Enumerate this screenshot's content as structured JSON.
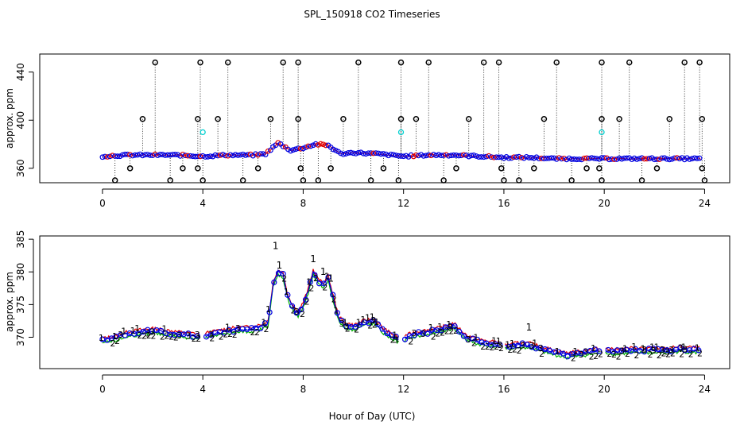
{
  "figure": {
    "title": "SPL_150918  CO2 Timeseries",
    "xlabel": "Hour of Day (UTC)"
  },
  "colors": {
    "outlier": "#000000",
    "series_1": "#e00000",
    "series_2": "#00b000",
    "series_3": "#0000e0",
    "flagged": "#00d0d0",
    "fit_line_red": "#e00000",
    "fit_line_blue": "#0000e0"
  },
  "chart_data": [
    {
      "type": "scatter",
      "panel": "top",
      "ylabel": "approx. ppm",
      "xlim": [
        -2.5,
        25
      ],
      "ylim": [
        348,
        455
      ],
      "xticks": [
        0,
        4,
        8,
        12,
        16,
        20,
        24
      ],
      "yticks": [
        360,
        400,
        440
      ],
      "base_curve": {
        "x": [
          0,
          1,
          2,
          3,
          4,
          5,
          6,
          6.5,
          7,
          7.5,
          8,
          8.5,
          9,
          9.5,
          10,
          11,
          12,
          13,
          14,
          15,
          16,
          17,
          18,
          19,
          20,
          21,
          22,
          23,
          23.8
        ],
        "y": [
          370,
          371,
          371,
          371,
          370,
          371,
          371,
          372,
          381,
          375,
          377,
          380,
          379,
          372,
          373,
          372,
          370,
          371,
          371,
          370,
          369,
          369,
          368,
          368,
          368,
          368,
          368,
          368,
          368
        ]
      },
      "outliers_high": {
        "x": [
          2.1,
          3.9,
          5.0,
          7.2,
          7.8,
          10.2,
          11.9,
          13.0,
          15.2,
          15.8,
          18.1,
          19.9,
          21.0,
          23.2,
          23.8
        ],
        "y": [
          448,
          448,
          448,
          448,
          448,
          448,
          448,
          448,
          448,
          448,
          448,
          448,
          448,
          448,
          448
        ]
      },
      "outliers_mid": {
        "x": [
          1.6,
          3.8,
          4.6,
          6.7,
          7.8,
          9.6,
          11.9,
          12.5,
          14.6,
          17.6,
          19.9,
          20.6,
          22.6,
          23.9
        ],
        "y": [
          401,
          401,
          401,
          401,
          401,
          401,
          401,
          401,
          401,
          401,
          401,
          401,
          401,
          401
        ]
      },
      "outliers_low": {
        "x": [
          0.5,
          1.1,
          2.7,
          3.2,
          3.8,
          4.0,
          5.6,
          6.2,
          7.9,
          8.0,
          8.6,
          9.1,
          10.7,
          11.2,
          11.8,
          13.6,
          14.1,
          15.9,
          16.0,
          16.6,
          17.2,
          18.7,
          19.3,
          19.8,
          19.9,
          21.5,
          22.1,
          23.9,
          24.0
        ],
        "y": [
          350,
          360,
          350,
          360,
          360,
          350,
          350,
          360,
          360,
          350,
          350,
          360,
          350,
          360,
          350,
          350,
          360,
          360,
          350,
          350,
          360,
          350,
          360,
          360,
          350,
          350,
          360,
          360,
          350
        ]
      },
      "flagged_points": {
        "x": [
          4.0,
          11.9,
          19.9
        ],
        "y": [
          390,
          390,
          390
        ]
      }
    },
    {
      "type": "scatter",
      "panel": "bottom",
      "ylabel": "approx. ppm",
      "xlim": [
        -2.5,
        25
      ],
      "ylim": [
        365.2,
        385.5
      ],
      "xticks": [
        0,
        4,
        8,
        12,
        16,
        20,
        24
      ],
      "yticks": [
        370,
        375,
        380,
        385
      ],
      "series": [
        {
          "name": "1",
          "marker": "1"
        },
        {
          "name": "2",
          "marker": "2"
        },
        {
          "name": "3",
          "marker": "3"
        }
      ],
      "base_curve": {
        "x": [
          0,
          0.5,
          1,
          1.5,
          2,
          2.5,
          3,
          3.5,
          3.9,
          4.1,
          4.5,
          5,
          5.5,
          6,
          6.4,
          6.6,
          6.8,
          7.0,
          7.2,
          7.4,
          7.6,
          7.8,
          8.0,
          8.2,
          8.4,
          8.6,
          8.8,
          9.0,
          9.2,
          9.4,
          9.6,
          10.0,
          10.4,
          10.8,
          11.2,
          11.6,
          11.9,
          12.1,
          12.5,
          13,
          13.5,
          14,
          14.5,
          15,
          15.5,
          15.9,
          16.1,
          16.5,
          17,
          17.5,
          18,
          18.5,
          19,
          19.5,
          19.9,
          20.1,
          20.5,
          21,
          21.5,
          22,
          22.5,
          23,
          23.5,
          23.8
        ],
        "y": [
          369.5,
          369.8,
          370.5,
          370.8,
          371,
          370.8,
          370.5,
          370.3,
          370.2,
          370.3,
          370.6,
          371,
          371.2,
          371.3,
          371.7,
          372.2,
          378,
          380,
          379.5,
          376,
          374.5,
          373.5,
          375,
          377,
          380,
          378.5,
          378,
          379,
          376,
          373,
          372,
          371.5,
          372.2,
          372.5,
          371,
          370,
          369.5,
          370,
          370.5,
          370.8,
          371.2,
          371.8,
          370,
          369.3,
          369,
          369,
          368.5,
          368.8,
          368.8,
          368.2,
          367.7,
          367.3,
          367.5,
          367.8,
          368,
          368,
          367.8,
          368,
          368,
          368,
          368,
          368.2,
          368.1,
          368
        ]
      },
      "annotated_peaks": {
        "x": [
          6.9,
          7.05,
          8.4,
          8.8,
          9.1,
          17.0
        ],
        "y": [
          384,
          381,
          382,
          380,
          379,
          371.5
        ]
      }
    }
  ]
}
